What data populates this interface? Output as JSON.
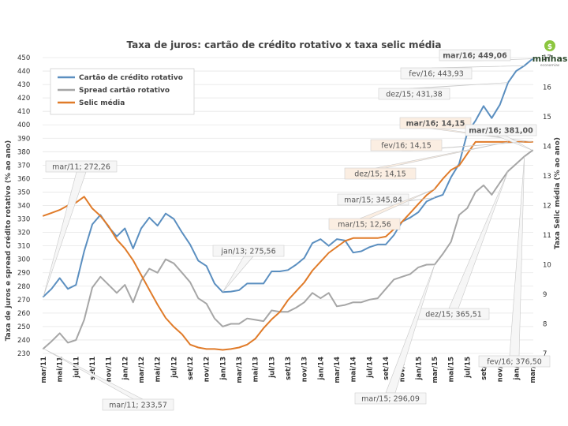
{
  "chart_data": {
    "type": "line",
    "title": "Taxa de juros: cartão de crédito rotativo x taxa selic média",
    "ylabel": "Taxa de juros e spread crédito rotativo (% ao ano)",
    "y2label": "Taxa Selic média (% ao ano)",
    "ylim": [
      230,
      450
    ],
    "yticks": [
      230,
      240,
      250,
      260,
      270,
      280,
      290,
      300,
      310,
      320,
      330,
      340,
      350,
      360,
      370,
      380,
      390,
      400,
      410,
      420,
      430,
      440,
      450
    ],
    "y2lim": [
      7,
      17
    ],
    "y2ticks": [
      7,
      8,
      9,
      10,
      11,
      12,
      13,
      14,
      15,
      16,
      17
    ],
    "xticklabels": [
      "mar/11",
      "mai/11",
      "jul/11",
      "set/11",
      "nov/11",
      "jan/12",
      "mar/12",
      "mai/12",
      "jul/12",
      "set/12",
      "nov/12",
      "jan/13",
      "mar/13",
      "mai/13",
      "jul/13",
      "set/13",
      "nov/13",
      "jan/14",
      "mar/14",
      "mai/14",
      "jul/14",
      "set/14",
      "nov/14",
      "jan/15",
      "mar/15",
      "mai/15",
      "jul/15",
      "set/15",
      "nov/15",
      "jan/16",
      "mar/16"
    ],
    "months": [
      "mar/11",
      "abr/11",
      "mai/11",
      "jun/11",
      "jul/11",
      "ago/11",
      "set/11",
      "out/11",
      "nov/11",
      "dez/11",
      "jan/12",
      "fev/12",
      "mar/12",
      "abr/12",
      "mai/12",
      "jun/12",
      "jul/12",
      "ago/12",
      "set/12",
      "out/12",
      "nov/12",
      "dez/12",
      "jan/13",
      "fev/13",
      "mar/13",
      "abr/13",
      "mai/13",
      "jun/13",
      "jul/13",
      "ago/13",
      "set/13",
      "out/13",
      "nov/13",
      "dez/13",
      "jan/14",
      "fev/14",
      "mar/14",
      "abr/14",
      "mai/14",
      "jun/14",
      "jul/14",
      "ago/14",
      "set/14",
      "out/14",
      "nov/14",
      "dez/14",
      "jan/15",
      "fev/15",
      "mar/15",
      "abr/15",
      "mai/15",
      "jun/15",
      "jul/15",
      "ago/15",
      "set/15",
      "out/15",
      "nov/15",
      "dez/15",
      "jan/16",
      "fev/16",
      "mar/16"
    ],
    "series": [
      {
        "name": "Cartão de crédito rotativo",
        "axis": "left",
        "color": "#5b8fc0",
        "values": [
          272.26,
          278,
          286,
          278,
          281,
          306,
          326,
          333,
          324,
          317,
          323,
          308,
          323,
          331,
          325,
          334,
          330,
          320,
          311,
          299,
          295,
          282,
          275.56,
          276,
          277,
          282,
          282,
          282,
          291,
          291,
          292,
          296,
          301,
          312,
          315,
          310,
          315,
          314,
          305,
          306,
          309,
          311,
          311,
          318,
          328,
          331,
          335,
          343,
          345.84,
          348,
          361,
          371,
          394,
          403,
          414,
          405,
          415,
          431.38,
          440,
          443.93,
          449.06
        ]
      },
      {
        "name": "Spread cartão rotativo",
        "axis": "left",
        "color": "#a6a6a6",
        "values": [
          233.57,
          239,
          245,
          238,
          240,
          255,
          279,
          287,
          281,
          275,
          281,
          268,
          284,
          293,
          290,
          300,
          297,
          290,
          283,
          271,
          267,
          256,
          250,
          252,
          252,
          256,
          255,
          254,
          262,
          261,
          261,
          264,
          268,
          275,
          271,
          275,
          265,
          266,
          268,
          268,
          270,
          271,
          278,
          285,
          287,
          289,
          294,
          296,
          296.09,
          304,
          313,
          333,
          338,
          350,
          355,
          348,
          357,
          365.51,
          371,
          376.5,
          381
        ]
      },
      {
        "name": "Selic média",
        "axis": "right",
        "color": "#e07b29",
        "values": [
          11.65,
          11.75,
          11.85,
          12.0,
          12.1,
          12.3,
          11.9,
          11.65,
          11.3,
          10.85,
          10.55,
          10.15,
          9.65,
          9.15,
          8.65,
          8.2,
          7.9,
          7.65,
          7.3,
          7.2,
          7.15,
          7.15,
          7.12,
          7.15,
          7.2,
          7.3,
          7.5,
          7.85,
          8.15,
          8.4,
          8.8,
          9.1,
          9.4,
          9.8,
          10.1,
          10.4,
          10.6,
          10.8,
          10.9,
          10.9,
          10.9,
          10.9,
          10.95,
          11.2,
          11.45,
          11.75,
          12.05,
          12.35,
          12.56,
          12.9,
          13.2,
          13.35,
          13.75,
          14.15,
          14.15,
          14.15,
          14.15,
          14.15,
          14.15,
          14.15,
          14.15
        ]
      }
    ],
    "legend": [
      {
        "label": "Cartão de crédito rotativo",
        "color": "#5b8fc0"
      },
      {
        "label": "Spread cartão rotativo",
        "color": "#a6a6a6"
      },
      {
        "label": "Selic média",
        "color": "#e07b29"
      }
    ],
    "legend_position": "top-left",
    "annotations": [
      {
        "text": "mar/16; 449,06",
        "series": 0,
        "index": 60,
        "bold": true
      },
      {
        "text": "fev/16; 443,93",
        "series": 0,
        "index": 59,
        "bold": false
      },
      {
        "text": "dez/15; 431,38",
        "series": 0,
        "index": 57,
        "bold": false
      },
      {
        "text": "mar/16; 14,15",
        "series": 2,
        "index": 60,
        "bold": true
      },
      {
        "text": "mar/16; 381,00",
        "series": 1,
        "index": 60,
        "bold": true
      },
      {
        "text": "fev/16; 14,15",
        "series": 2,
        "index": 59,
        "bold": false
      },
      {
        "text": "mar/11; 272,26",
        "series": 0,
        "index": 0,
        "bold": false
      },
      {
        "text": "dez/15; 14,15",
        "series": 2,
        "index": 57,
        "bold": false
      },
      {
        "text": "mar/15; 345,84",
        "series": 0,
        "index": 48,
        "bold": false
      },
      {
        "text": "mar/15; 12,56",
        "series": 2,
        "index": 48,
        "bold": false
      },
      {
        "text": "jan/13; 275,56",
        "series": 0,
        "index": 22,
        "bold": false
      },
      {
        "text": "fev/16; 376,50",
        "series": 1,
        "index": 59,
        "bold": false
      },
      {
        "text": "dez/15; 365,51",
        "series": 1,
        "index": 57,
        "bold": false
      },
      {
        "text": "mar/15; 296,09",
        "series": 1,
        "index": 48,
        "bold": false
      },
      {
        "text": "mar/11; 233,57",
        "series": 1,
        "index": 0,
        "bold": false
      }
    ]
  },
  "logo": {
    "name": "minhas",
    "sub": "economias",
    "symbol": "$"
  }
}
